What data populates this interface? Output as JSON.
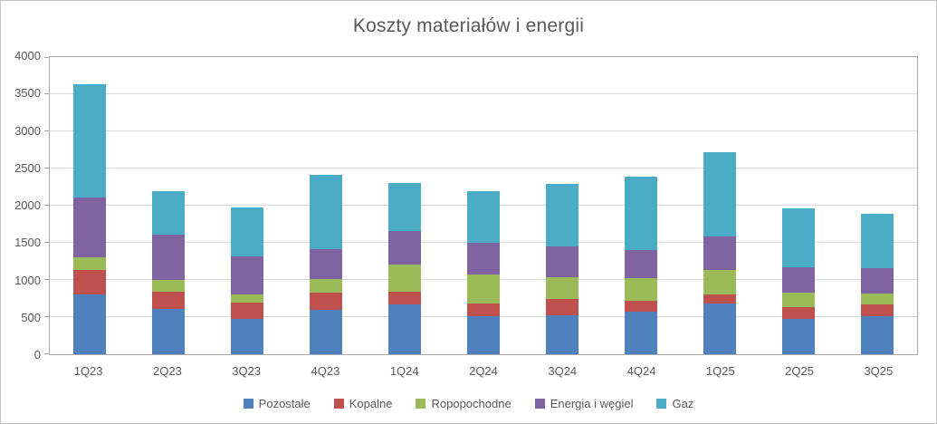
{
  "chart_data": {
    "type": "bar",
    "stacked": true,
    "title": "Koszty materiałów i energii",
    "categories": [
      "1Q23",
      "2Q23",
      "3Q23",
      "4Q23",
      "1Q24",
      "2Q24",
      "3Q24",
      "4Q24",
      "1Q25",
      "2Q25",
      "3Q25"
    ],
    "series": [
      {
        "name": "Pozostałe",
        "color": "#4F81BD",
        "values": [
          800,
          610,
          480,
          600,
          670,
          510,
          530,
          570,
          680,
          470,
          510
        ]
      },
      {
        "name": "Kopalne",
        "color": "#C0504D",
        "values": [
          330,
          230,
          210,
          230,
          170,
          170,
          210,
          150,
          130,
          160,
          160
        ]
      },
      {
        "name": "Ropopochodne",
        "color": "#9BBB59",
        "values": [
          180,
          160,
          110,
          180,
          370,
          390,
          300,
          300,
          320,
          200,
          150
        ]
      },
      {
        "name": "Energia i węgiel",
        "color": "#8064A2",
        "values": [
          800,
          610,
          520,
          400,
          450,
          430,
          410,
          380,
          450,
          340,
          340
        ]
      },
      {
        "name": "Gaz",
        "color": "#4BACC6",
        "values": [
          1520,
          580,
          660,
          1010,
          640,
          690,
          840,
          990,
          1140,
          800,
          730
        ]
      }
    ],
    "xlabel": "",
    "ylabel": "",
    "ylim": [
      0,
      4000
    ],
    "yticks": [
      0,
      500,
      1000,
      1500,
      2000,
      2500,
      3000,
      3500,
      4000
    ],
    "grid": true,
    "legend_position": "bottom"
  },
  "colors": {
    "gridline": "#D9D9D9",
    "plot_border": "#A6A6A6",
    "outer_border": "#C3C3C3",
    "text": "#595959",
    "background": "#FFFFFF"
  }
}
